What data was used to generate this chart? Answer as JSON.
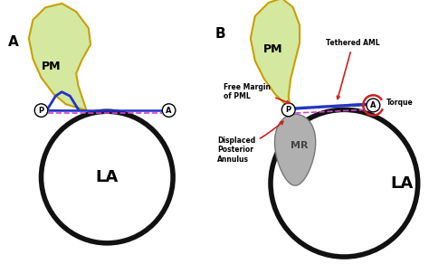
{
  "background_color": "#ffffff",
  "panel_A_label": "A",
  "panel_B_label": "B",
  "pm_color": "#d4e8a0",
  "pm_outline_color": "#c8a000",
  "la_outline_color": "#111111",
  "annulus_dashed_color": "#cc44cc",
  "chord_color_dark": "#111111",
  "chord_color_gray": "#aaaaaa",
  "mr_color": "#b0b0b0",
  "mr_outline_color": "#777777",
  "tether_color_dark": "#111111",
  "tether_color_gray": "#aaaaaa",
  "blue_line_color": "#2233cc",
  "red_arrow_color": "#cc2222",
  "torque_circle_color": "#cc2222",
  "annulus_solid_color": "#2233cc",
  "label_LA": "LA",
  "label_PM": "PM",
  "label_MR": "MR",
  "annotation_tethered": "Tethered AML",
  "annotation_torque": "Torque",
  "annotation_free_margin": "Free Margin\nof PML",
  "annotation_displaced": "Displaced\nPosterior\nAnnulus"
}
